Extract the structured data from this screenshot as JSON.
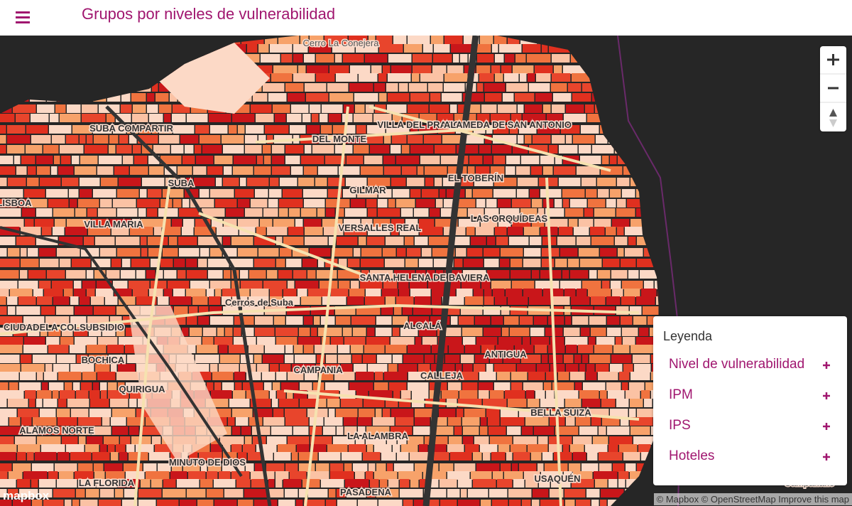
{
  "header": {
    "title": "Grupos por niveles de vulnerabilidad"
  },
  "map": {
    "labels": [
      "Cerro La Conejera",
      "SUBA COMPARTIR",
      "DEL MONTE",
      "VILLA DEL PRADO",
      "ALAMEDA DE SAN ANTONIO",
      "SUBA",
      "GILMAR",
      "EL TOBERÍN",
      "LISBOA",
      "VILLA MARIA",
      "VERSALLES REAL",
      "LAS ORQUÍDEAS",
      "SANTA HELENA DE BAVIERA",
      "Cerros de Suba",
      "CIUDADELA COLSUBSIDIO",
      "ALCALÁ",
      "ANTIGUA",
      "BOCHICA",
      "CAMPANIA",
      "CALLEJA",
      "QUIRIGUA",
      "BELLA SUIZA",
      "ALAMOS NORTE",
      "LA ALAMBRA",
      "MINUTO DE DIOS",
      "USAQUÉN",
      "LA FLORIDA",
      "PASADENA",
      "Campanario"
    ],
    "logo": "mapbox",
    "attribution": "© Mapbox © OpenStreetMap Improve this map"
  },
  "legend": {
    "title": "Leyenda",
    "items": [
      "Nivel de vulnerabilidad",
      "IPM",
      "IPS",
      "Hoteles"
    ]
  }
}
